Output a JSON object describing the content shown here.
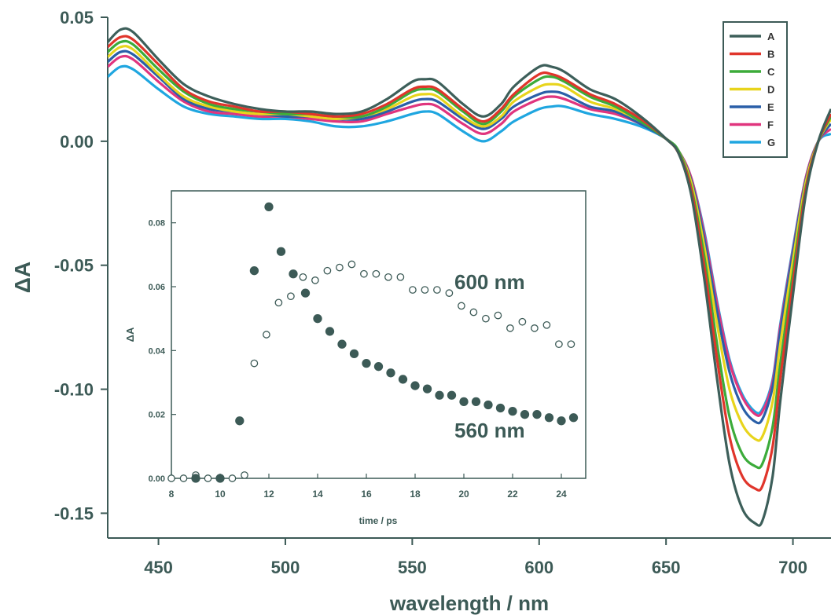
{
  "chart_data": [
    {
      "type": "line",
      "xlabel": "wavelength / nm",
      "ylabel": "ΔA",
      "xlim": [
        430,
        715
      ],
      "ylim": [
        -0.16,
        0.05
      ],
      "x_ticks": [
        450,
        500,
        550,
        600,
        650,
        700
      ],
      "x_tick_labels": [
        "450",
        "500",
        "550",
        "600",
        "650",
        "700"
      ],
      "y_ticks": [
        0.05,
        0.0,
        -0.05,
        -0.1,
        -0.15
      ],
      "y_tick_labels": [
        "0.05",
        "0.00",
        "-0.05",
        "-0.10",
        "-0.15"
      ],
      "grid": false,
      "legend": "top-right",
      "x": [
        430,
        435,
        440,
        450,
        460,
        470,
        480,
        490,
        500,
        510,
        520,
        530,
        540,
        550,
        555,
        560,
        570,
        578,
        585,
        590,
        600,
        605,
        610,
        620,
        630,
        640,
        650,
        655,
        660,
        665,
        670,
        675,
        680,
        685,
        688,
        692,
        695,
        700,
        705,
        710,
        715
      ],
      "series": [
        {
          "name": "A",
          "color": "#3d5f5a",
          "values": [
            0.04,
            0.045,
            0.044,
            0.033,
            0.023,
            0.018,
            0.015,
            0.013,
            0.012,
            0.012,
            0.011,
            0.012,
            0.017,
            0.024,
            0.025,
            0.024,
            0.015,
            0.01,
            0.015,
            0.022,
            0.03,
            0.03,
            0.028,
            0.021,
            0.017,
            0.01,
            0.001,
            -0.005,
            -0.022,
            -0.055,
            -0.095,
            -0.13,
            -0.148,
            -0.154,
            -0.153,
            -0.135,
            -0.105,
            -0.062,
            -0.022,
            0.0,
            0.013
          ]
        },
        {
          "name": "B",
          "color": "#e0352b",
          "values": [
            0.038,
            0.042,
            0.041,
            0.031,
            0.021,
            0.016,
            0.014,
            0.012,
            0.012,
            0.011,
            0.01,
            0.011,
            0.015,
            0.021,
            0.022,
            0.021,
            0.013,
            0.008,
            0.013,
            0.019,
            0.027,
            0.027,
            0.025,
            0.019,
            0.015,
            0.009,
            0.001,
            -0.005,
            -0.02,
            -0.05,
            -0.087,
            -0.119,
            -0.135,
            -0.14,
            -0.139,
            -0.123,
            -0.096,
            -0.057,
            -0.02,
            0.0,
            0.011
          ]
        },
        {
          "name": "C",
          "color": "#3cab3a",
          "values": [
            0.036,
            0.04,
            0.039,
            0.029,
            0.02,
            0.015,
            0.013,
            0.012,
            0.011,
            0.011,
            0.01,
            0.01,
            0.014,
            0.02,
            0.021,
            0.02,
            0.012,
            0.007,
            0.012,
            0.018,
            0.025,
            0.026,
            0.024,
            0.018,
            0.014,
            0.008,
            0.001,
            -0.004,
            -0.019,
            -0.046,
            -0.081,
            -0.111,
            -0.126,
            -0.131,
            -0.13,
            -0.115,
            -0.09,
            -0.053,
            -0.019,
            0.0,
            0.01
          ]
        },
        {
          "name": "D",
          "color": "#e8d41c",
          "values": [
            0.034,
            0.038,
            0.037,
            0.027,
            0.018,
            0.014,
            0.012,
            0.011,
            0.011,
            0.01,
            0.009,
            0.01,
            0.013,
            0.018,
            0.019,
            0.018,
            0.01,
            0.006,
            0.01,
            0.016,
            0.022,
            0.023,
            0.022,
            0.016,
            0.013,
            0.008,
            0.001,
            -0.004,
            -0.017,
            -0.042,
            -0.073,
            -0.1,
            -0.114,
            -0.12,
            -0.119,
            -0.105,
            -0.082,
            -0.048,
            -0.017,
            0.0,
            0.009
          ]
        },
        {
          "name": "E",
          "color": "#2a5fa8",
          "values": [
            0.032,
            0.036,
            0.035,
            0.026,
            0.017,
            0.013,
            0.012,
            0.011,
            0.01,
            0.01,
            0.009,
            0.009,
            0.012,
            0.016,
            0.017,
            0.016,
            0.009,
            0.005,
            0.009,
            0.014,
            0.019,
            0.02,
            0.019,
            0.014,
            0.012,
            0.007,
            0.001,
            -0.004,
            -0.016,
            -0.039,
            -0.068,
            -0.093,
            -0.107,
            -0.113,
            -0.112,
            -0.099,
            -0.077,
            -0.045,
            -0.016,
            0.0,
            0.007
          ]
        },
        {
          "name": "F",
          "color": "#e0357e",
          "values": [
            0.03,
            0.034,
            0.033,
            0.024,
            0.016,
            0.012,
            0.011,
            0.01,
            0.01,
            0.009,
            0.008,
            0.008,
            0.011,
            0.014,
            0.015,
            0.014,
            0.007,
            0.003,
            0.007,
            0.012,
            0.017,
            0.018,
            0.017,
            0.013,
            0.011,
            0.007,
            0.001,
            -0.004,
            -0.015,
            -0.037,
            -0.065,
            -0.089,
            -0.103,
            -0.11,
            -0.109,
            -0.097,
            -0.075,
            -0.044,
            -0.015,
            0.0,
            0.005
          ]
        },
        {
          "name": "G",
          "color": "#1fa6e0",
          "values": [
            0.026,
            0.03,
            0.029,
            0.021,
            0.014,
            0.011,
            0.01,
            0.009,
            0.009,
            0.008,
            0.006,
            0.006,
            0.008,
            0.011,
            0.012,
            0.011,
            0.004,
            0.0,
            0.004,
            0.008,
            0.013,
            0.014,
            0.014,
            0.011,
            0.009,
            0.006,
            0.001,
            -0.004,
            -0.015,
            -0.036,
            -0.064,
            -0.088,
            -0.102,
            -0.109,
            -0.108,
            -0.096,
            -0.074,
            -0.043,
            -0.015,
            0.0,
            0.003
          ]
        }
      ]
    },
    {
      "type": "scatter",
      "xlabel": "time / ps",
      "ylabel": "ΔA",
      "xlim": [
        8,
        25
      ],
      "ylim": [
        0.0,
        0.09
      ],
      "x_ticks": [
        8,
        10,
        12,
        14,
        16,
        18,
        20,
        22,
        24
      ],
      "x_tick_labels": [
        "8",
        "10",
        "12",
        "14",
        "16",
        "18",
        "20",
        "22",
        "24"
      ],
      "y_ticks": [
        0.0,
        0.02,
        0.04,
        0.06,
        0.08
      ],
      "y_tick_labels": [
        "0.00",
        "0.02",
        "0.04",
        "0.06",
        "0.08"
      ],
      "grid": false,
      "series": [
        {
          "name": "600 nm",
          "marker": "open-circle",
          "x": [
            8.0,
            8.5,
            9.0,
            9.5,
            10.0,
            10.5,
            11.0,
            11.4,
            11.9,
            12.4,
            12.9,
            13.4,
            13.9,
            14.4,
            14.9,
            15.4,
            15.9,
            16.4,
            16.9,
            17.4,
            17.9,
            18.4,
            18.9,
            19.4,
            19.9,
            20.4,
            20.9,
            21.4,
            21.9,
            22.4,
            22.9,
            23.4,
            23.9,
            24.4
          ],
          "y": [
            0.0,
            0.0,
            0.001,
            0.0,
            0.0,
            0.0,
            0.001,
            0.036,
            0.045,
            0.055,
            0.057,
            0.063,
            0.062,
            0.065,
            0.066,
            0.067,
            0.064,
            0.064,
            0.063,
            0.063,
            0.059,
            0.059,
            0.059,
            0.058,
            0.054,
            0.052,
            0.05,
            0.051,
            0.047,
            0.049,
            0.047,
            0.048,
            0.042,
            0.042
          ]
        },
        {
          "name": "560 nm",
          "marker": "filled-circle",
          "x": [
            9.0,
            10.0,
            10.8,
            11.4,
            12.0,
            12.5,
            13.0,
            13.5,
            14.0,
            14.5,
            15.0,
            15.5,
            16.0,
            16.5,
            17.0,
            17.5,
            18.0,
            18.5,
            19.0,
            19.5,
            20.0,
            20.5,
            21.0,
            21.5,
            22.0,
            22.5,
            23.0,
            23.5,
            24.0,
            24.5
          ],
          "y": [
            0.0,
            0.0,
            0.018,
            0.065,
            0.085,
            0.071,
            0.064,
            0.058,
            0.05,
            0.046,
            0.042,
            0.039,
            0.036,
            0.035,
            0.033,
            0.031,
            0.029,
            0.028,
            0.026,
            0.026,
            0.024,
            0.024,
            0.023,
            0.022,
            0.021,
            0.02,
            0.02,
            0.019,
            0.018,
            0.019
          ]
        }
      ],
      "annotations": [
        "600 nm",
        "560 nm"
      ]
    }
  ]
}
